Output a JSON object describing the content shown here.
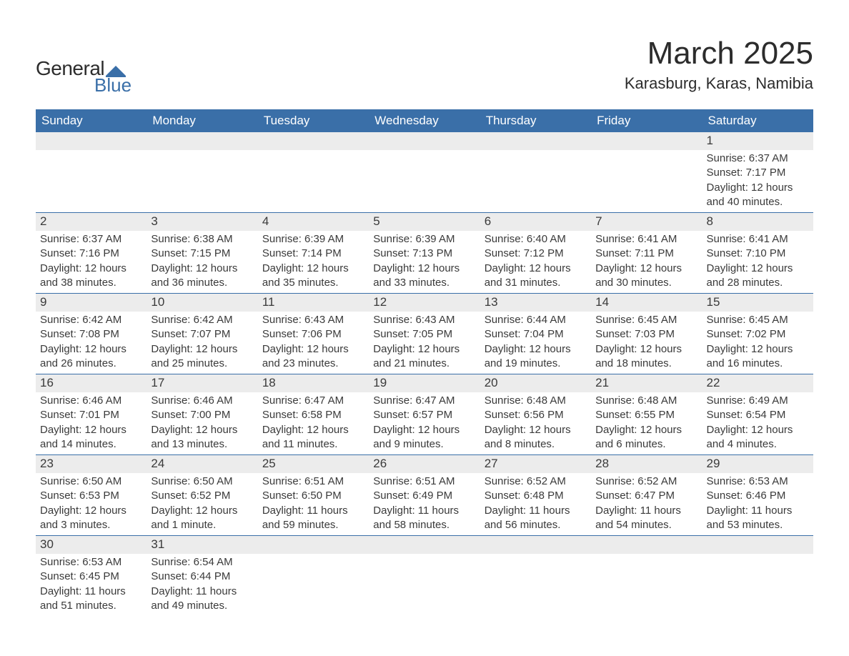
{
  "logo": {
    "text_general": "General",
    "text_blue": "Blue",
    "shape_color": "#3a6fa8"
  },
  "title": "March 2025",
  "location": "Karasburg, Karas, Namibia",
  "colors": {
    "header_bg": "#3a6fa8",
    "header_text": "#ffffff",
    "daynum_bg": "#ececec",
    "body_text": "#3a3a3a",
    "divider": "#3a6fa8",
    "page_bg": "#ffffff"
  },
  "typography": {
    "title_fontsize": 44,
    "location_fontsize": 22,
    "header_fontsize": 17,
    "daynum_fontsize": 17,
    "body_fontsize": 15
  },
  "layout": {
    "columns": 7,
    "column_width_pct": 14.285
  },
  "weekdays": [
    "Sunday",
    "Monday",
    "Tuesday",
    "Wednesday",
    "Thursday",
    "Friday",
    "Saturday"
  ],
  "weeks": [
    [
      null,
      null,
      null,
      null,
      null,
      null,
      {
        "n": 1,
        "sunrise": "6:37 AM",
        "sunset": "7:17 PM",
        "daylight": "12 hours and 40 minutes."
      }
    ],
    [
      {
        "n": 2,
        "sunrise": "6:37 AM",
        "sunset": "7:16 PM",
        "daylight": "12 hours and 38 minutes."
      },
      {
        "n": 3,
        "sunrise": "6:38 AM",
        "sunset": "7:15 PM",
        "daylight": "12 hours and 36 minutes."
      },
      {
        "n": 4,
        "sunrise": "6:39 AM",
        "sunset": "7:14 PM",
        "daylight": "12 hours and 35 minutes."
      },
      {
        "n": 5,
        "sunrise": "6:39 AM",
        "sunset": "7:13 PM",
        "daylight": "12 hours and 33 minutes."
      },
      {
        "n": 6,
        "sunrise": "6:40 AM",
        "sunset": "7:12 PM",
        "daylight": "12 hours and 31 minutes."
      },
      {
        "n": 7,
        "sunrise": "6:41 AM",
        "sunset": "7:11 PM",
        "daylight": "12 hours and 30 minutes."
      },
      {
        "n": 8,
        "sunrise": "6:41 AM",
        "sunset": "7:10 PM",
        "daylight": "12 hours and 28 minutes."
      }
    ],
    [
      {
        "n": 9,
        "sunrise": "6:42 AM",
        "sunset": "7:08 PM",
        "daylight": "12 hours and 26 minutes."
      },
      {
        "n": 10,
        "sunrise": "6:42 AM",
        "sunset": "7:07 PM",
        "daylight": "12 hours and 25 minutes."
      },
      {
        "n": 11,
        "sunrise": "6:43 AM",
        "sunset": "7:06 PM",
        "daylight": "12 hours and 23 minutes."
      },
      {
        "n": 12,
        "sunrise": "6:43 AM",
        "sunset": "7:05 PM",
        "daylight": "12 hours and 21 minutes."
      },
      {
        "n": 13,
        "sunrise": "6:44 AM",
        "sunset": "7:04 PM",
        "daylight": "12 hours and 19 minutes."
      },
      {
        "n": 14,
        "sunrise": "6:45 AM",
        "sunset": "7:03 PM",
        "daylight": "12 hours and 18 minutes."
      },
      {
        "n": 15,
        "sunrise": "6:45 AM",
        "sunset": "7:02 PM",
        "daylight": "12 hours and 16 minutes."
      }
    ],
    [
      {
        "n": 16,
        "sunrise": "6:46 AM",
        "sunset": "7:01 PM",
        "daylight": "12 hours and 14 minutes."
      },
      {
        "n": 17,
        "sunrise": "6:46 AM",
        "sunset": "7:00 PM",
        "daylight": "12 hours and 13 minutes."
      },
      {
        "n": 18,
        "sunrise": "6:47 AM",
        "sunset": "6:58 PM",
        "daylight": "12 hours and 11 minutes."
      },
      {
        "n": 19,
        "sunrise": "6:47 AM",
        "sunset": "6:57 PM",
        "daylight": "12 hours and 9 minutes."
      },
      {
        "n": 20,
        "sunrise": "6:48 AM",
        "sunset": "6:56 PM",
        "daylight": "12 hours and 8 minutes."
      },
      {
        "n": 21,
        "sunrise": "6:48 AM",
        "sunset": "6:55 PM",
        "daylight": "12 hours and 6 minutes."
      },
      {
        "n": 22,
        "sunrise": "6:49 AM",
        "sunset": "6:54 PM",
        "daylight": "12 hours and 4 minutes."
      }
    ],
    [
      {
        "n": 23,
        "sunrise": "6:50 AM",
        "sunset": "6:53 PM",
        "daylight": "12 hours and 3 minutes."
      },
      {
        "n": 24,
        "sunrise": "6:50 AM",
        "sunset": "6:52 PM",
        "daylight": "12 hours and 1 minute."
      },
      {
        "n": 25,
        "sunrise": "6:51 AM",
        "sunset": "6:50 PM",
        "daylight": "11 hours and 59 minutes."
      },
      {
        "n": 26,
        "sunrise": "6:51 AM",
        "sunset": "6:49 PM",
        "daylight": "11 hours and 58 minutes."
      },
      {
        "n": 27,
        "sunrise": "6:52 AM",
        "sunset": "6:48 PM",
        "daylight": "11 hours and 56 minutes."
      },
      {
        "n": 28,
        "sunrise": "6:52 AM",
        "sunset": "6:47 PM",
        "daylight": "11 hours and 54 minutes."
      },
      {
        "n": 29,
        "sunrise": "6:53 AM",
        "sunset": "6:46 PM",
        "daylight": "11 hours and 53 minutes."
      }
    ],
    [
      {
        "n": 30,
        "sunrise": "6:53 AM",
        "sunset": "6:45 PM",
        "daylight": "11 hours and 51 minutes."
      },
      {
        "n": 31,
        "sunrise": "6:54 AM",
        "sunset": "6:44 PM",
        "daylight": "11 hours and 49 minutes."
      },
      null,
      null,
      null,
      null,
      null
    ]
  ],
  "labels": {
    "sunrise": "Sunrise: ",
    "sunset": "Sunset: ",
    "daylight": "Daylight: "
  }
}
